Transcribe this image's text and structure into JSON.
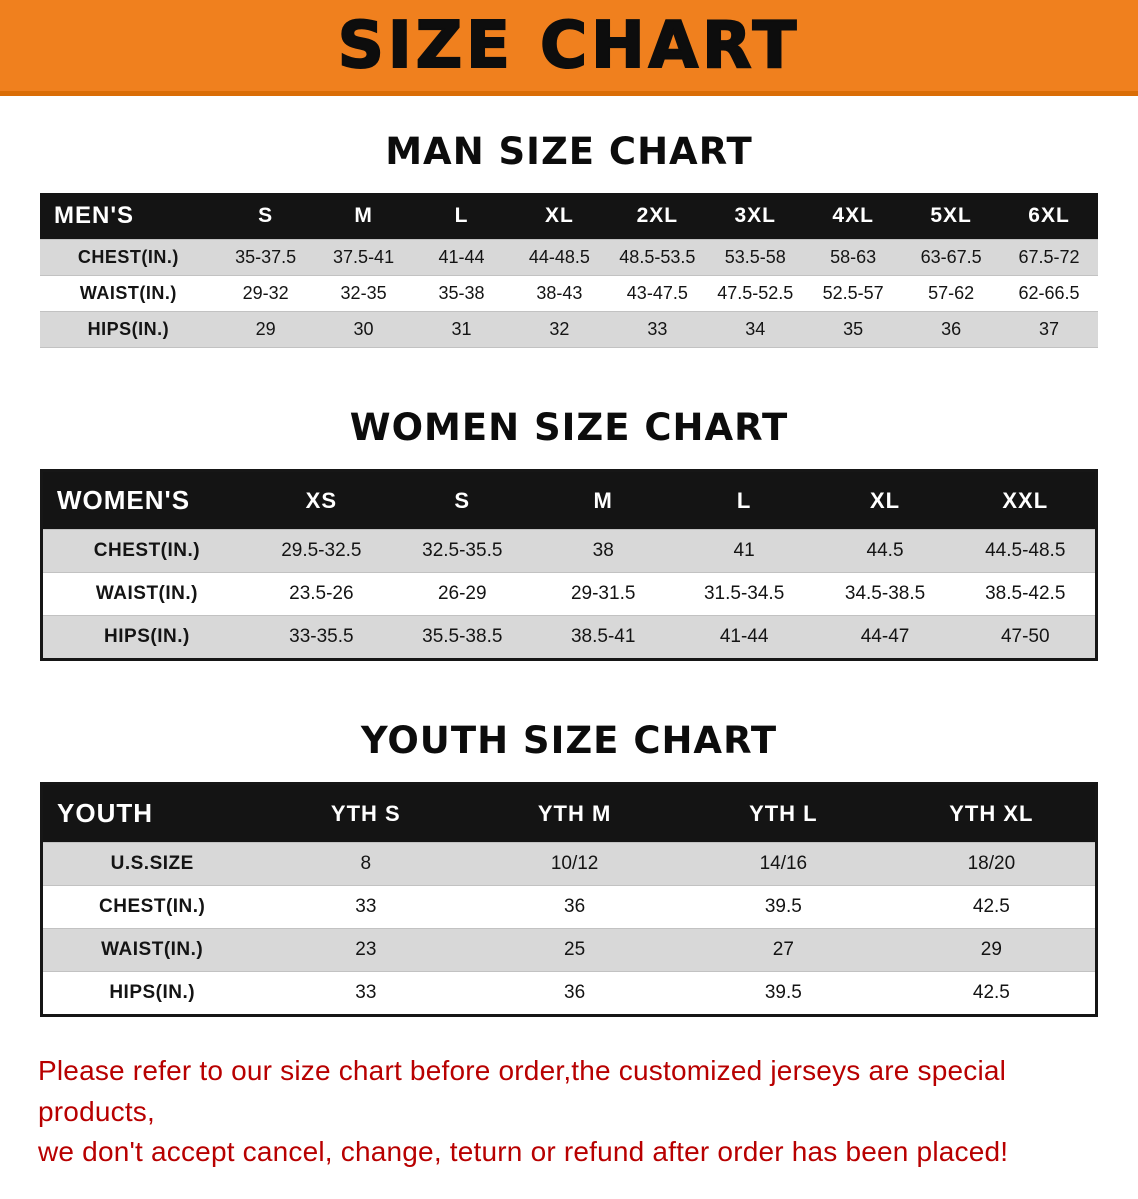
{
  "banner": {
    "title": "SIZE CHART",
    "bg_color": "#f0801e",
    "text_color": "#0d0d0d"
  },
  "chart_data": [
    {
      "type": "table",
      "title": "MAN SIZE CHART",
      "header": [
        "MEN'S",
        "S",
        "M",
        "L",
        "XL",
        "2XL",
        "3XL",
        "4XL",
        "5XL",
        "6XL"
      ],
      "rows": [
        [
          "CHEST(IN.)",
          "35-37.5",
          "37.5-41",
          "41-44",
          "44-48.5",
          "48.5-53.5",
          "53.5-58",
          "58-63",
          "63-67.5",
          "67.5-72"
        ],
        [
          "WAIST(IN.)",
          "29-32",
          "32-35",
          "35-38",
          "38-43",
          "43-47.5",
          "47.5-52.5",
          "52.5-57",
          "57-62",
          "62-66.5"
        ],
        [
          "HIPS(IN.)",
          "29",
          "30",
          "31",
          "32",
          "33",
          "34",
          "35",
          "36",
          "37"
        ]
      ]
    },
    {
      "type": "table",
      "title": "WOMEN SIZE CHART",
      "header": [
        "WOMEN'S",
        "XS",
        "S",
        "M",
        "L",
        "XL",
        "XXL"
      ],
      "rows": [
        [
          "CHEST(IN.)",
          "29.5-32.5",
          "32.5-35.5",
          "38",
          "41",
          "44.5",
          "44.5-48.5"
        ],
        [
          "WAIST(IN.)",
          "23.5-26",
          "26-29",
          "29-31.5",
          "31.5-34.5",
          "34.5-38.5",
          "38.5-42.5"
        ],
        [
          "HIPS(IN.)",
          "33-35.5",
          "35.5-38.5",
          "38.5-41",
          "41-44",
          "44-47",
          "47-50"
        ]
      ]
    },
    {
      "type": "table",
      "title": "YOUTH SIZE CHART",
      "header": [
        "YOUTH",
        "YTH S",
        "YTH M",
        "YTH L",
        "YTH XL"
      ],
      "rows": [
        [
          "U.S.SIZE",
          "8",
          "10/12",
          "14/16",
          "18/20"
        ],
        [
          "CHEST(IN.)",
          "33",
          "36",
          "39.5",
          "42.5"
        ],
        [
          "WAIST(IN.)",
          "23",
          "25",
          "27",
          "29"
        ],
        [
          "HIPS(IN.)",
          "33",
          "36",
          "39.5",
          "42.5"
        ]
      ]
    }
  ],
  "disclaimer": {
    "line1": "Please refer to our size chart before order,the customized jerseys are special products,",
    "line2": "we don't accept cancel, change, teturn or refund after order has been placed!",
    "color": "#b80000"
  }
}
